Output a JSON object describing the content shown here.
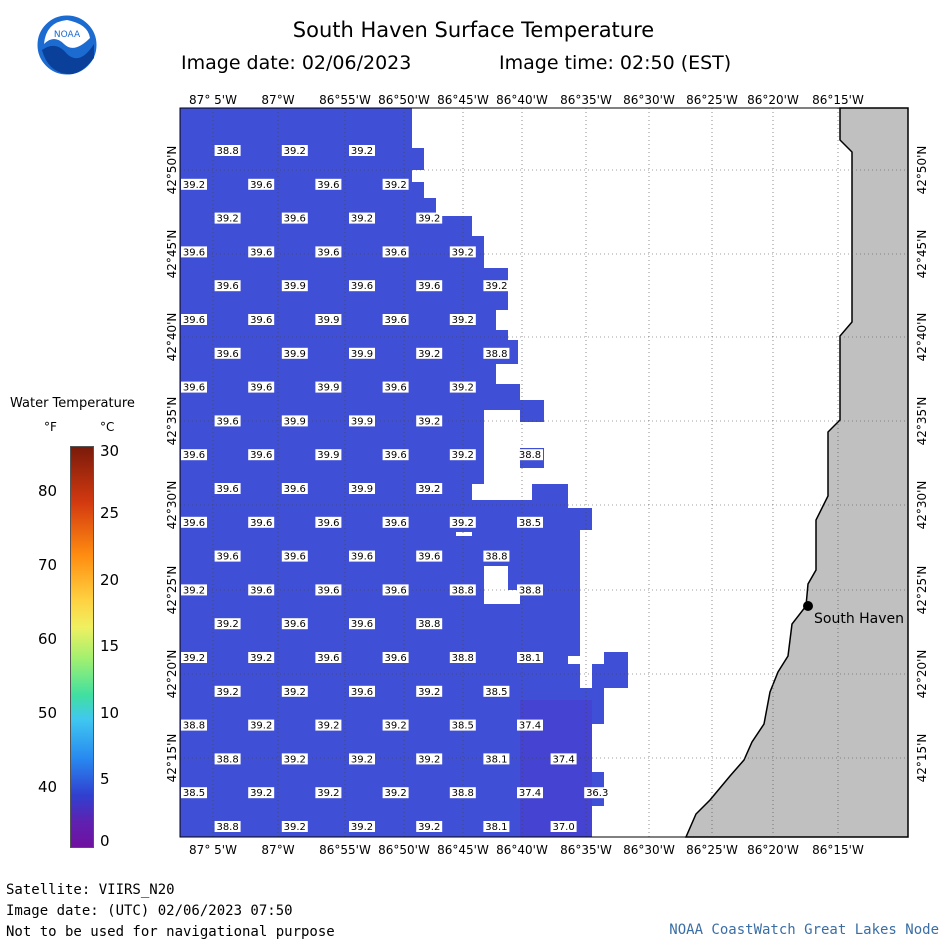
{
  "header": {
    "title": "South Haven Surface Temperature",
    "image_date": "Image date: 02/06/2023",
    "image_time": "Image time: 02:50 (EST)"
  },
  "logo": {
    "text": "NOAA",
    "color": "#1b6bd1"
  },
  "map": {
    "lon_labels": [
      "87° 5'W",
      "87°W",
      "86°55'W",
      "86°50'W",
      "86°45'W",
      "86°40'W",
      "86°35'W",
      "86°30'W",
      "86°25'W",
      "86°20'W",
      "86°15'W"
    ],
    "lat_labels": [
      "42°50'N",
      "42°45'N",
      "42°40'N",
      "42°35'N",
      "42°30'N",
      "42°25'N",
      "42°20'N",
      "42°15'N"
    ],
    "city": "South Haven",
    "water_color": "#3f4fd6",
    "land_color": "#c0c0c0",
    "temp_rows": [
      [
        "",
        "38.8",
        "",
        "39.2",
        "",
        "39.2",
        ""
      ],
      [
        "39.2",
        "",
        "39.6",
        "",
        "39.6",
        "",
        "39.2"
      ],
      [
        "",
        "39.2",
        "",
        "39.6",
        "",
        "39.2",
        "",
        "39.2"
      ],
      [
        "39.6",
        "",
        "39.6",
        "",
        "39.6",
        "",
        "39.6",
        "",
        "39.2"
      ],
      [
        "",
        "39.6",
        "",
        "39.9",
        "",
        "39.6",
        "",
        "39.6",
        "",
        "39.2"
      ],
      [
        "39.6",
        "",
        "39.6",
        "",
        "39.9",
        "",
        "39.6",
        "",
        "39.2"
      ],
      [
        "",
        "39.6",
        "",
        "39.9",
        "",
        "39.9",
        "",
        "39.2",
        "",
        "38.8"
      ],
      [
        "39.6",
        "",
        "39.6",
        "",
        "39.9",
        "",
        "39.6",
        "",
        "39.2"
      ],
      [
        "",
        "39.6",
        "",
        "39.9",
        "",
        "39.9",
        "",
        "39.2"
      ],
      [
        "39.6",
        "",
        "39.6",
        "",
        "39.9",
        "",
        "39.6",
        "",
        "39.2",
        "",
        "38.8"
      ],
      [
        "",
        "39.6",
        "",
        "39.6",
        "",
        "39.9",
        "",
        "39.2"
      ],
      [
        "39.6",
        "",
        "39.6",
        "",
        "39.6",
        "",
        "39.6",
        "",
        "39.2",
        "",
        "38.5"
      ],
      [
        "",
        "39.6",
        "",
        "39.6",
        "",
        "39.6",
        "",
        "39.6",
        "",
        "38.8"
      ],
      [
        "39.2",
        "",
        "39.6",
        "",
        "39.6",
        "",
        "39.6",
        "",
        "38.8",
        "",
        "38.8"
      ],
      [
        "",
        "39.2",
        "",
        "39.6",
        "",
        "39.6",
        "",
        "38.8"
      ],
      [
        "39.2",
        "",
        "39.2",
        "",
        "39.6",
        "",
        "39.6",
        "",
        "38.8",
        "",
        "38.1"
      ],
      [
        "",
        "39.2",
        "",
        "39.2",
        "",
        "39.6",
        "",
        "39.2",
        "",
        "38.5"
      ],
      [
        "38.8",
        "",
        "39.2",
        "",
        "39.2",
        "",
        "39.2",
        "",
        "38.5",
        "",
        "37.4"
      ],
      [
        "",
        "38.8",
        "",
        "39.2",
        "",
        "39.2",
        "",
        "39.2",
        "",
        "38.1",
        "",
        "37.4"
      ],
      [
        "38.5",
        "",
        "39.2",
        "",
        "39.2",
        "",
        "39.2",
        "",
        "38.8",
        "",
        "37.4",
        "",
        "36.3"
      ],
      [
        "",
        "38.8",
        "",
        "39.2",
        "",
        "39.2",
        "",
        "39.2",
        "",
        "38.1",
        "",
        "37.0"
      ]
    ]
  },
  "legend": {
    "title": "Water Temperature",
    "f_label": "°F",
    "c_label": "°C",
    "f_ticks": [
      "80",
      "70",
      "60",
      "50",
      "40"
    ],
    "c_ticks": [
      "30",
      "25",
      "20",
      "15",
      "10",
      "5",
      "0"
    ]
  },
  "footer": {
    "satellite": "Satellite: VIIRS_N20",
    "utc_date": "Image date: (UTC) 02/06/2023  07:50",
    "disclaimer": "Not to be used for navigational purpose",
    "credit": "NOAA CoastWatch Great Lakes Node"
  }
}
